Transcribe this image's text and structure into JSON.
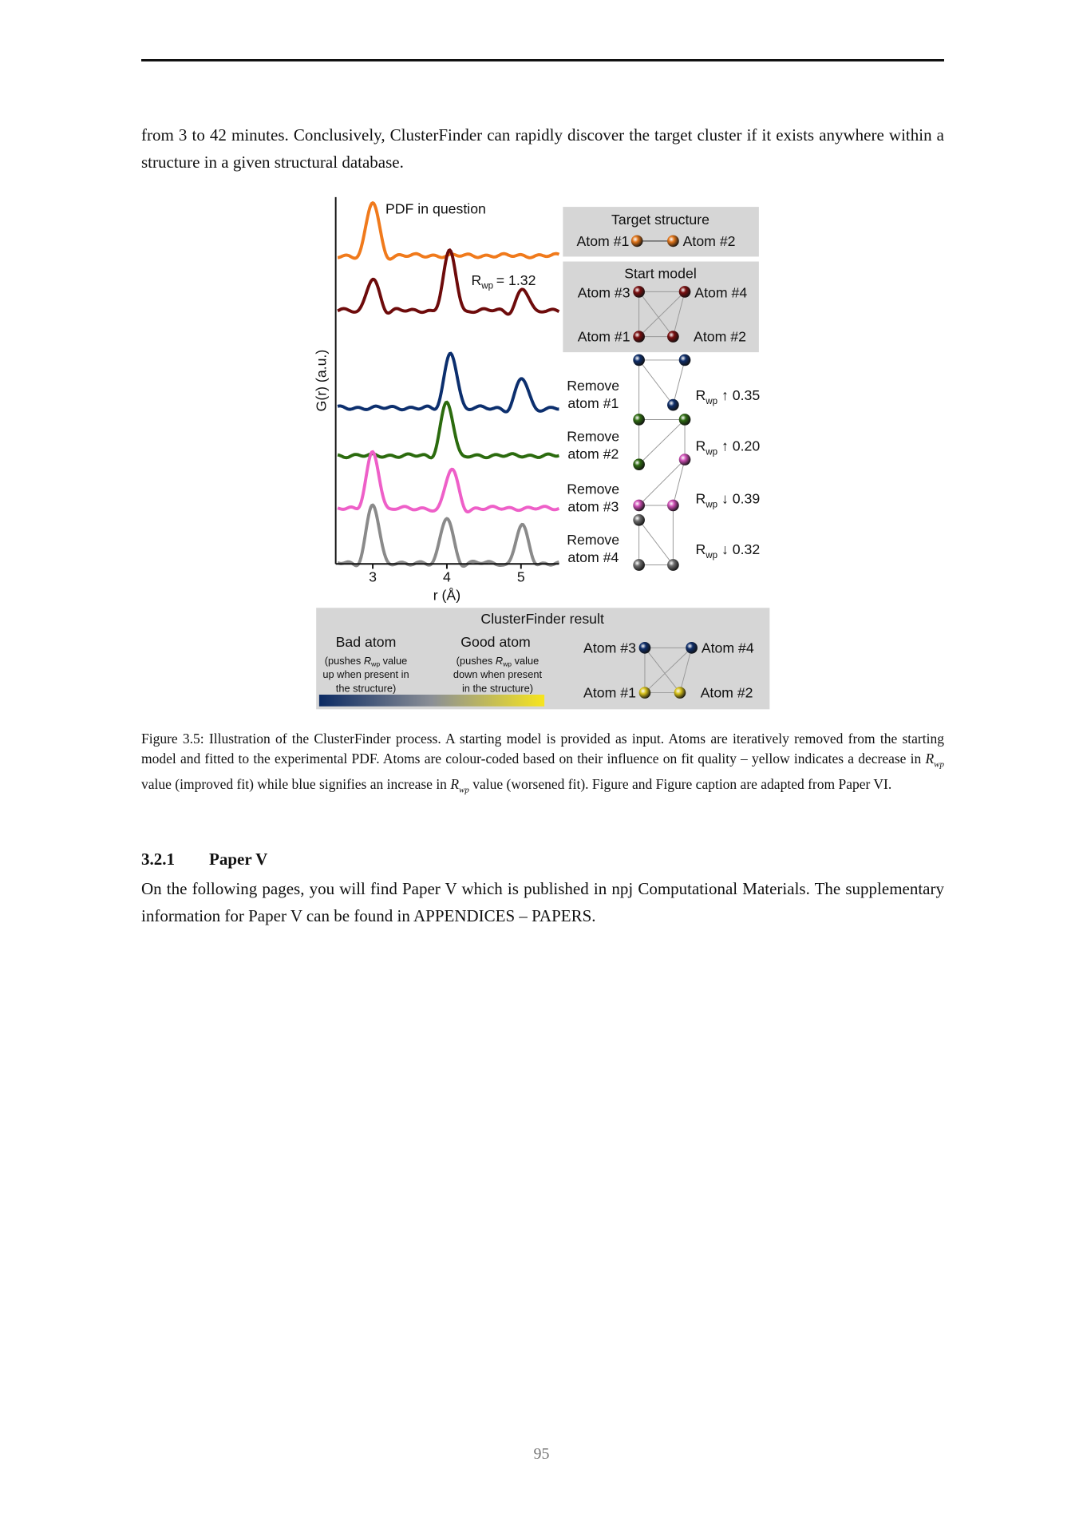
{
  "paragraphs": [
    "from 3 to 42 minutes. Conclusively, ClusterFinder can rapidly discover the target cluster if it exists anywhere within a structure in a given structural database."
  ],
  "figure": {
    "y_axis_label": "G(r) (a.u.)",
    "x_axis_label": "r (Å)",
    "x_ticks": [
      "3",
      "4",
      "5"
    ],
    "pdf_label": "PDF in question",
    "start_rwp": {
      "sym": "R",
      "sub": "wp",
      "value": "= 1.32"
    },
    "target": {
      "title": "Target structure",
      "atoms": [
        "Atom #1",
        "Atom #2"
      ]
    },
    "start": {
      "title": "Start model",
      "atoms": [
        "Atom #3",
        "Atom #4",
        "Atom #1",
        "Atom #2"
      ]
    },
    "removals": [
      {
        "label": [
          "Remove",
          "atom #1"
        ],
        "rwp": {
          "sym": "R",
          "sub": "wp",
          "value": "↑ 0.35"
        }
      },
      {
        "label": [
          "Remove",
          "atom #2"
        ],
        "rwp": {
          "sym": "R",
          "sub": "wp",
          "value": "↑ 0.20"
        }
      },
      {
        "label": [
          "Remove",
          "atom #3"
        ],
        "rwp": {
          "sym": "R",
          "sub": "wp",
          "value": "↓ 0.39"
        }
      },
      {
        "label": [
          "Remove",
          "atom #4"
        ],
        "rwp": {
          "sym": "R",
          "sub": "wp",
          "value": "↓ 0.32"
        }
      }
    ],
    "result": {
      "title": "ClusterFinder result",
      "bad": {
        "title": "Bad atom",
        "line1": [
          "(pushes ",
          "R",
          "wp",
          " value"
        ],
        "line2": "up when present in",
        "line3": "the structure)"
      },
      "good": {
        "title": "Good atom",
        "line1": [
          "(pushes ",
          "R",
          "wp",
          " value"
        ],
        "line2": "down when present",
        "line3": "in the structure)"
      },
      "atoms": [
        "Atom #3",
        "Atom #4",
        "Atom #1",
        "Atom #2"
      ]
    }
  },
  "caption": [
    "Figure 3.5: Illustration of the ClusterFinder process. A starting model is provided as input. Atoms are iteratively removed from the starting model and fitted to the experimental PDF. Atoms are colour-coded based on their influence on fit quality – yellow indicates a decrease in ",
    "R",
    "wp",
    " value (improved fit) while blue signifies an increase in ",
    "R",
    "wp",
    " value (worsened fit). Figure and Figure caption are adapted from Paper VI."
  ],
  "section": {
    "number": "3.2.1",
    "title": "Paper V",
    "text": "On the following pages, you will find Paper V which is published in npj Computational Materials. The supplementary information for Paper V can be found in APPENDICES – PAPERS."
  },
  "page_number": "95"
}
